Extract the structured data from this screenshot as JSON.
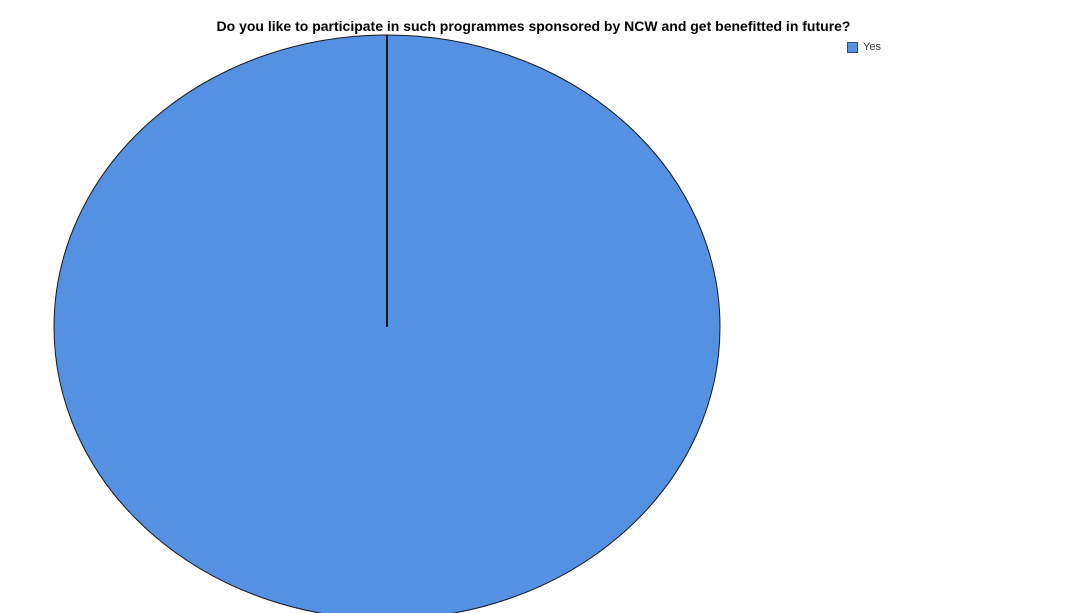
{
  "chart_data": {
    "type": "pie",
    "title": "Do you like to participate in such programmes  sponsored by NCW and get benefitted in future?",
    "categories": [
      "Yes"
    ],
    "values": [
      100
    ],
    "legend": {
      "placement": "top-right",
      "entries": [
        "Yes"
      ]
    },
    "colors": {
      "Yes": "#5591e2"
    },
    "outline_color": "#1a1a1a"
  }
}
